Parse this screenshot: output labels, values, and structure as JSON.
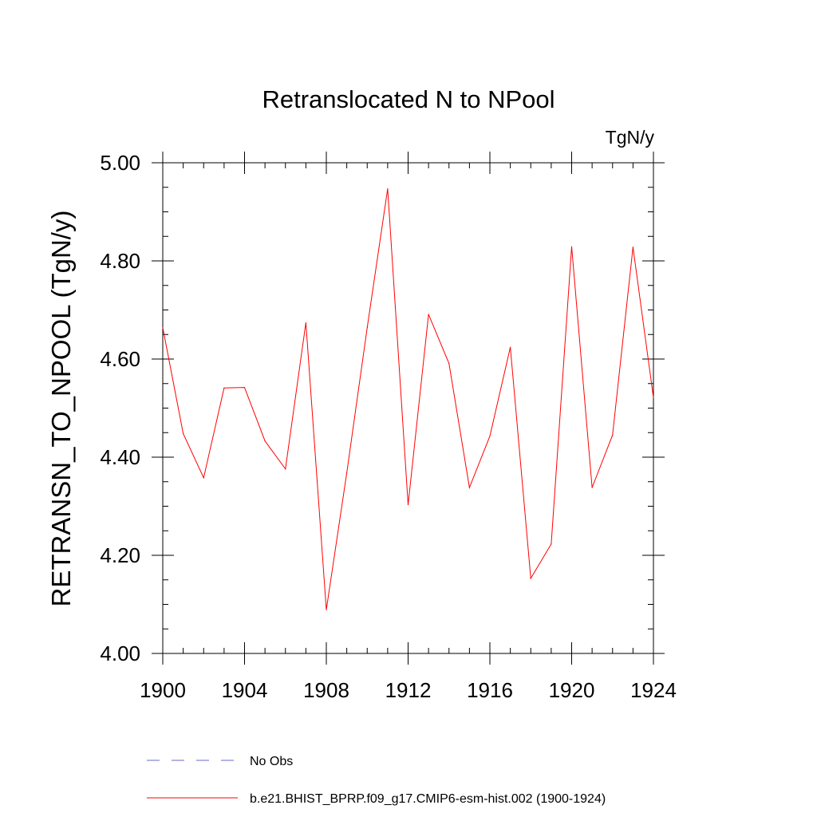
{
  "chart_data": {
    "type": "line",
    "title": "Retranslocated N to NPool",
    "units": "TgN/y",
    "ylabel": "RETRANSN_TO_NPOOL  (TgN/y)",
    "xlabel": "",
    "xlim": [
      1900,
      1924
    ],
    "ylim": [
      4.0,
      5.0
    ],
    "x_ticks": [
      1900,
      1904,
      1908,
      1912,
      1916,
      1920,
      1924
    ],
    "x_tick_labels": [
      "1900",
      "1904",
      "1908",
      "1912",
      "1916",
      "1920",
      "1924"
    ],
    "y_ticks": [
      4.0,
      4.2,
      4.4,
      4.6,
      4.8,
      5.0
    ],
    "y_tick_labels": [
      "4.00",
      "4.20",
      "4.40",
      "4.60",
      "4.80",
      "5.00"
    ],
    "grid": false,
    "legend_position": "bottom",
    "x": [
      1900,
      1901,
      1902,
      1903,
      1904,
      1905,
      1906,
      1907,
      1908,
      1909,
      1910,
      1911,
      1912,
      1913,
      1914,
      1915,
      1916,
      1917,
      1918,
      1919,
      1920,
      1921,
      1922,
      1923,
      1924
    ],
    "series": [
      {
        "name": "b.e21.BHIST_BPRP.f09_g17.CMIP6-esm-hist.002 (1900-1924)",
        "color": "#ff0000",
        "style": "solid",
        "values": [
          4.664,
          4.448,
          4.358,
          4.541,
          4.542,
          4.433,
          4.376,
          4.674,
          4.089,
          4.368,
          4.664,
          4.947,
          4.303,
          4.691,
          4.591,
          4.338,
          4.443,
          4.624,
          4.153,
          4.223,
          4.829,
          4.338,
          4.445,
          4.828,
          4.521
        ]
      }
    ],
    "legend": [
      {
        "label": "No Obs",
        "color": "#6a6ac8",
        "style": "dashed"
      },
      {
        "label": "b.e21.BHIST_BPRP.f09_g17.CMIP6-esm-hist.002 (1900-1924)",
        "color": "#ff0000",
        "style": "solid"
      }
    ]
  }
}
